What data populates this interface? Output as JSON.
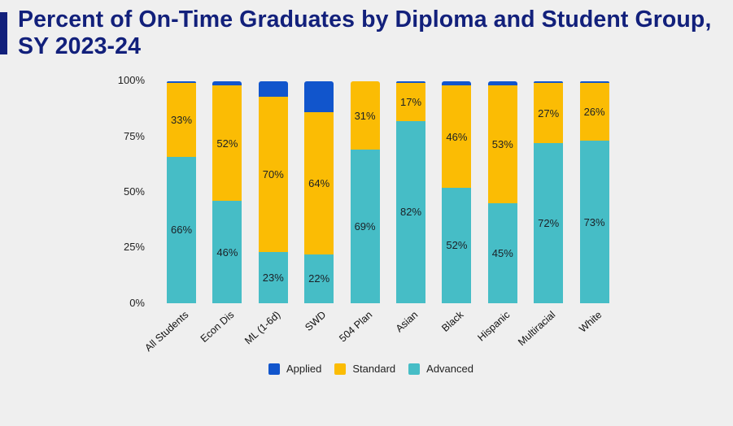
{
  "page": {
    "background": "#EFEFEF"
  },
  "header": {
    "title_line1": "Percent of On-Time Graduates by Diploma and Student Group,",
    "title_line2": "SY 2023-24",
    "title_color": "#12207B",
    "accent_color": "#12207B"
  },
  "chart_data": {
    "type": "bar",
    "stacked": true,
    "title": "Percent of On-Time Graduates by Diploma and Student Group, SY 2023-24",
    "categories": [
      "All Students",
      "Econ Dis",
      "ML (1-6d)",
      "SWD",
      "504 Plan",
      "Asian",
      "Black",
      "Hispanic",
      "Multiracial",
      "White"
    ],
    "series": [
      {
        "name": "Advanced",
        "color": "#46BDC6",
        "show_labels": true,
        "values": [
          66,
          46,
          23,
          22,
          69,
          82,
          52,
          45,
          72,
          73
        ]
      },
      {
        "name": "Standard",
        "color": "#FBBC04",
        "show_labels": true,
        "values": [
          33,
          52,
          70,
          64,
          31,
          17,
          46,
          53,
          27,
          26
        ]
      },
      {
        "name": "Applied",
        "color": "#1155CC",
        "show_labels": false,
        "values": [
          1,
          2,
          7,
          14,
          0,
          1,
          2,
          2,
          1,
          1
        ]
      }
    ],
    "value_suffix": "%",
    "xlabel": "",
    "ylabel": "",
    "ylim": [
      0,
      100
    ],
    "yticks": [
      0,
      25,
      50,
      75,
      100
    ],
    "ytick_labels": [
      "0%",
      "25%",
      "50%",
      "75%",
      "100%"
    ],
    "grid": false,
    "legend_position": "bottom",
    "legend": [
      {
        "label": "Applied",
        "color": "#1155CC"
      },
      {
        "label": "Standard",
        "color": "#FBBC04"
      },
      {
        "label": "Advanced",
        "color": "#46BDC6"
      }
    ]
  }
}
